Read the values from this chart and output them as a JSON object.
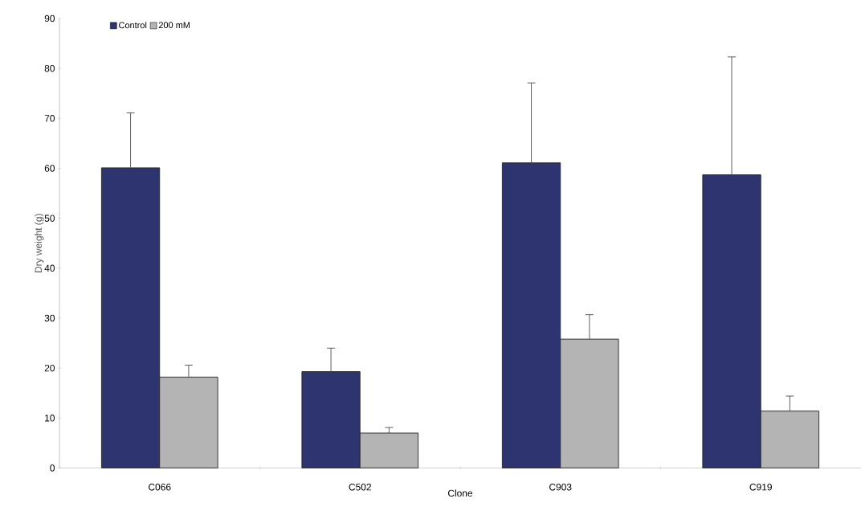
{
  "chart_data": {
    "type": "bar",
    "xlabel": "Clone",
    "ylabel": "Dry weight (g)",
    "categories": [
      "C066",
      "C502",
      "C903",
      "C919"
    ],
    "series": [
      {
        "name": "Control",
        "color": "#2e3470",
        "values": [
          60.1,
          19.3,
          61.1,
          58.7
        ],
        "errors": [
          [
            60.1,
            71.1
          ],
          [
            19.3,
            24.0
          ],
          [
            61.1,
            77.1
          ],
          [
            58.7,
            82.3
          ]
        ]
      },
      {
        "name": "200 mM",
        "color": "#b4b4b4",
        "values": [
          18.2,
          7.0,
          25.8,
          11.4
        ],
        "errors": [
          [
            18.2,
            20.6
          ],
          [
            7.0,
            8.1
          ],
          [
            25.8,
            30.7
          ],
          [
            11.4,
            14.4
          ]
        ]
      }
    ],
    "ylim": [
      0,
      90
    ],
    "yticks": [
      0,
      10,
      20,
      30,
      40,
      50,
      60,
      70,
      80,
      90
    ],
    "grid": false,
    "legend": "top left"
  }
}
